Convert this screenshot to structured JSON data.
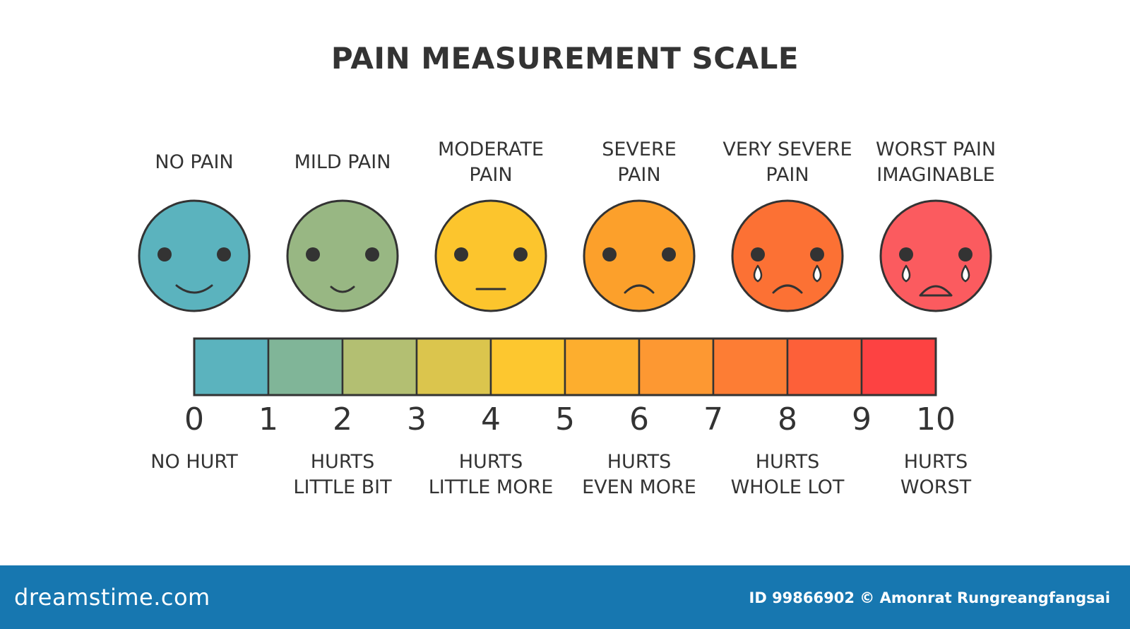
{
  "title": "PAIN MEASUREMENT SCALE",
  "faces": [
    {
      "label_lines": [
        "NO PAIN"
      ],
      "color": "#5bb3be",
      "mouth": "smile-big",
      "tears": false
    },
    {
      "label_lines": [
        "MILD PAIN"
      ],
      "color": "#98b783",
      "mouth": "smile-small",
      "tears": false
    },
    {
      "label_lines": [
        "MODERATE",
        "PAIN"
      ],
      "color": "#fcc52d",
      "mouth": "flat",
      "tears": false
    },
    {
      "label_lines": [
        "SEVERE",
        "PAIN"
      ],
      "color": "#fca02b",
      "mouth": "frown",
      "tears": false
    },
    {
      "label_lines": [
        "VERY SEVERE",
        "PAIN"
      ],
      "color": "#fc7134",
      "mouth": "frown",
      "tears": true
    },
    {
      "label_lines": [
        "WORST PAIN",
        "IMAGINABLE"
      ],
      "color": "#fb5b5f",
      "mouth": "open-frown",
      "tears": true
    }
  ],
  "scale": {
    "ticks": [
      "0",
      "1",
      "2",
      "3",
      "4",
      "5",
      "6",
      "7",
      "8",
      "9",
      "10"
    ],
    "segment_colors": [
      "#5bb3be",
      "#80b598",
      "#b3bf72",
      "#dbc54d",
      "#fdc72f",
      "#fdae2e",
      "#fd9832",
      "#fd7d34",
      "#fd6039",
      "#fd4242"
    ]
  },
  "descriptions": [
    {
      "lines": [
        "NO HURT"
      ]
    },
    {
      "lines": [
        "HURTS",
        "LITTLE BIT"
      ]
    },
    {
      "lines": [
        "HURTS",
        "LITTLE MORE"
      ]
    },
    {
      "lines": [
        "HURTS",
        "EVEN MORE"
      ]
    },
    {
      "lines": [
        "HURTS",
        "WHOLE LOT"
      ]
    },
    {
      "lines": [
        "HURTS",
        "WORST"
      ]
    }
  ],
  "footer": {
    "logo": "dreamstime.com",
    "credit": "ID 99866902 © Amonrat Rungreangfangsai"
  }
}
